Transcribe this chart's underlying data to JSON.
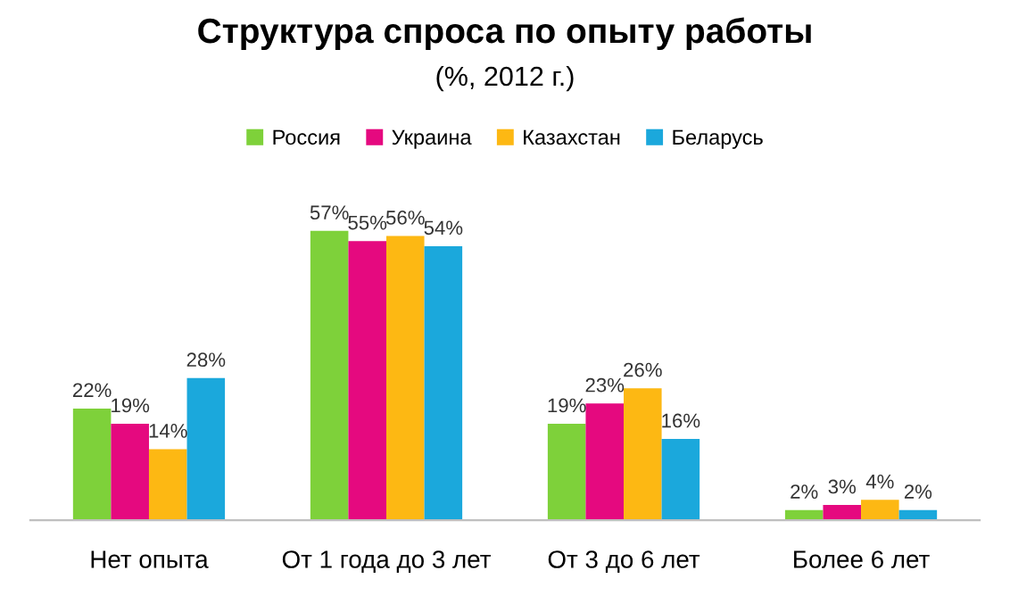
{
  "chart_data": {
    "type": "bar",
    "title": "Структура спроса по опыту работы",
    "subtitle": "(%, 2012 г.)",
    "categories": [
      "Нет опыта",
      "От 1 года до 3 лет",
      "От 3 до 6 лет",
      "Более 6 лет"
    ],
    "series": [
      {
        "name": "Россия",
        "color": "#7ed13a",
        "values": [
          22,
          57,
          19,
          2
        ],
        "value_labels": [
          "22%",
          "57%",
          "19%",
          "2%"
        ]
      },
      {
        "name": "Украина",
        "color": "#e5097f",
        "values": [
          19,
          55,
          23,
          3
        ],
        "value_labels": [
          "19%",
          "55%",
          "23%",
          "3%"
        ]
      },
      {
        "name": "Казахстан",
        "color": "#fdb813",
        "values": [
          14,
          56,
          26,
          4
        ],
        "value_labels": [
          "14%",
          "56%",
          "26%",
          "4%"
        ]
      },
      {
        "name": "Беларусь",
        "color": "#1ba8dc",
        "values": [
          28,
          54,
          16,
          2
        ],
        "value_labels": [
          "28%",
          "54%",
          "16%",
          "2%"
        ]
      }
    ],
    "legend": "top",
    "grid": false
  }
}
